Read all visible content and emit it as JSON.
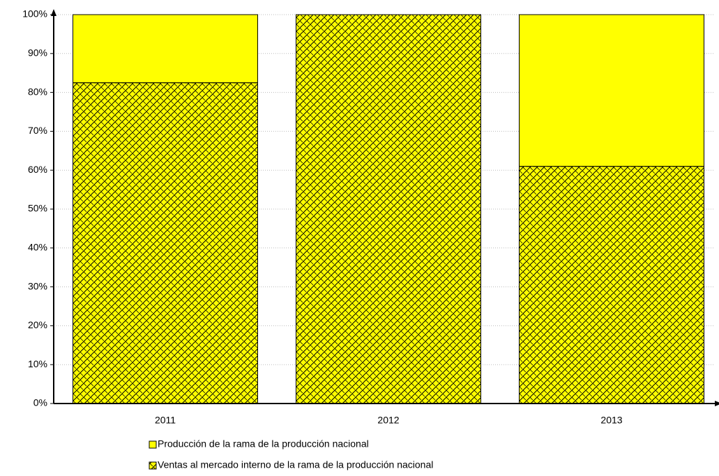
{
  "chart_data": {
    "type": "stacked_bar",
    "categories": [
      "2011",
      "2012",
      "2013"
    ],
    "series": [
      {
        "name": "Producción de la rama de la producción nacional",
        "color": "#ffff00",
        "hatch": false,
        "values": [
          17.5,
          0,
          39
        ]
      },
      {
        "name": "Ventas al mercado interno de la rama de la producción nacional",
        "color": "#ffff00",
        "hatch": true,
        "values": [
          82.5,
          100,
          61
        ]
      }
    ],
    "ylim": [
      0,
      100
    ],
    "yticks": [
      {
        "value": 0,
        "label": "0%"
      },
      {
        "value": 10,
        "label": "10%"
      },
      {
        "value": 20,
        "label": "20%"
      },
      {
        "value": 30,
        "label": "30%"
      },
      {
        "value": 40,
        "label": "40%"
      },
      {
        "value": 50,
        "label": "50%"
      },
      {
        "value": 60,
        "label": "60%"
      },
      {
        "value": 70,
        "label": "70%"
      },
      {
        "value": 80,
        "label": "80%"
      },
      {
        "value": 90,
        "label": "90%"
      },
      {
        "value": 100,
        "label": "100%"
      }
    ],
    "grid": true
  }
}
